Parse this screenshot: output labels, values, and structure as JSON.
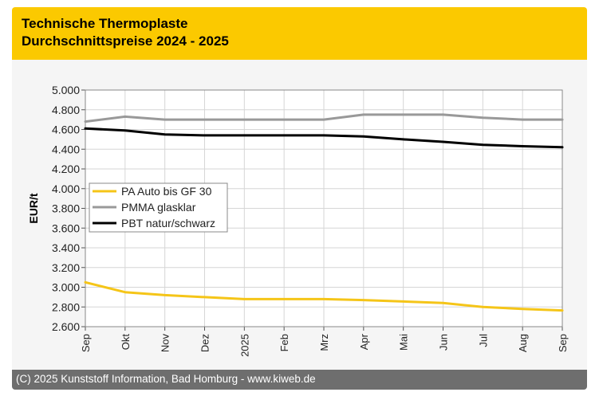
{
  "header": {
    "title_line1": "Technische Thermoplaste",
    "title_line2": "Durchschnittspreise 2024 - 2025"
  },
  "footer": {
    "copyright": "(C) 2025 Kunststoff Information, Bad Homburg - www.kiweb.de"
  },
  "colors": {
    "header_bg": "#fbc900",
    "footer_bg": "#6e6e6e",
    "series_pa": "#f5c518",
    "series_pmma": "#999999",
    "series_pbt": "#000000"
  },
  "chart_data": {
    "type": "line",
    "title": "Technische Thermoplaste Durchschnittspreise 2024 - 2025",
    "xlabel": "",
    "ylabel": "EUR/t",
    "categories": [
      "Sep",
      "Okt",
      "Nov",
      "Dez",
      "2025",
      "Feb",
      "Mrz",
      "Apr",
      "Mai",
      "Jun",
      "Jul",
      "Aug",
      "Sep"
    ],
    "yticks": [
      "2.600",
      "2.800",
      "3.000",
      "3.200",
      "3.400",
      "3.600",
      "3.800",
      "4.000",
      "4.200",
      "4.400",
      "4.600",
      "4.800",
      "5.000"
    ],
    "ylim": [
      2600,
      5000
    ],
    "grid": true,
    "legend_position": "middle-left",
    "series": [
      {
        "name": "PA Auto bis GF 30",
        "color": "#f5c518",
        "values": [
          3050,
          2950,
          2920,
          2900,
          2880,
          2880,
          2880,
          2870,
          2855,
          2840,
          2800,
          2780,
          2765
        ]
      },
      {
        "name": "PMMA glasklar",
        "color": "#999999",
        "values": [
          4680,
          4730,
          4700,
          4700,
          4700,
          4700,
          4700,
          4750,
          4750,
          4750,
          4720,
          4700,
          4700
        ]
      },
      {
        "name": "PBT natur/schwarz",
        "color": "#000000",
        "values": [
          4610,
          4590,
          4550,
          4540,
          4540,
          4540,
          4540,
          4530,
          4500,
          4475,
          4445,
          4430,
          4420
        ]
      }
    ]
  }
}
